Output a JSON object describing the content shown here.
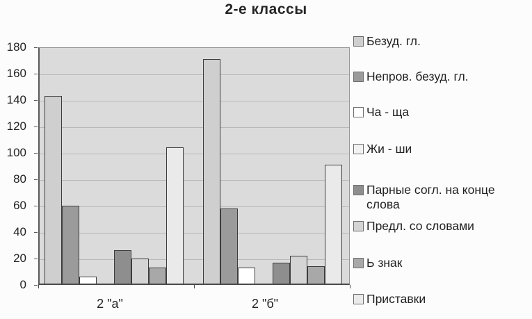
{
  "title": "2-е классы",
  "colors": {
    "page_bg": "#fcfcfc",
    "plot_bg": "#dbdbdb",
    "gridline": "#b8b8b8",
    "axis_line": "#4a4a4a",
    "bar_border": "#3c3c3c",
    "text": "#222222"
  },
  "chart_data": {
    "type": "bar",
    "title": "2-е классы",
    "categories": [
      "2 \"а\"",
      "2 \"б\""
    ],
    "series": [
      {
        "name": "Безуд. гл.",
        "color": "#cfcfcf",
        "values": [
          142,
          170
        ]
      },
      {
        "name": "Непров. безуд. гл.",
        "color": "#9b9b9b",
        "values": [
          59,
          57
        ]
      },
      {
        "name": "Ча - ща",
        "color": "#ffffff",
        "values": [
          5,
          12
        ]
      },
      {
        "name": "Жи - ши",
        "color": "#f2f2f2",
        "values": [
          0,
          0
        ]
      },
      {
        "name": "Парные согл. на конце слова",
        "color": "#8e8e8e",
        "values": [
          25,
          16
        ]
      },
      {
        "name": "Предл. со словами",
        "color": "#d4d4d4",
        "values": [
          19,
          21
        ]
      },
      {
        "name": "Ь знак",
        "color": "#a8a8a8",
        "values": [
          12,
          13
        ]
      },
      {
        "name": "Приставки",
        "color": "#eaeaea",
        "values": [
          103,
          90
        ]
      }
    ],
    "ylim": [
      0,
      180
    ],
    "ytick_step": 20,
    "yticks": [
      0,
      20,
      40,
      60,
      80,
      100,
      120,
      140,
      160,
      180
    ],
    "grid": true,
    "legend_position": "right"
  }
}
